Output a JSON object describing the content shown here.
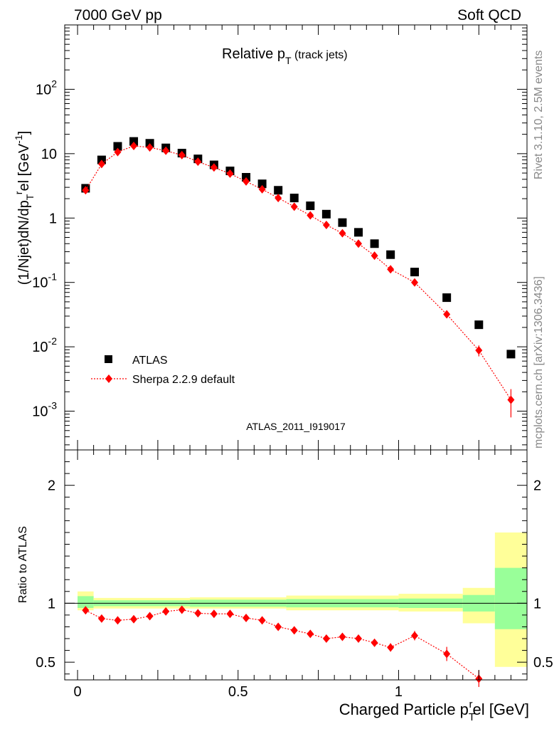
{
  "header": {
    "left": "7000 GeV pp",
    "right": "Soft QCD"
  },
  "side_labels": {
    "rivet": "Rivet 3.1.10,  2.5M events",
    "mcplots": "mcplots.cern.ch [arXiv:1306.3436]"
  },
  "colors": {
    "data": "#000000",
    "mc": "#ff0000",
    "band_inner": "#99ff99",
    "band_outer": "#ffff99"
  },
  "chart_data": [
    {
      "type": "scatter",
      "title": "Relative p",
      "title_sub": "T",
      "title_suffix": " (track jets)",
      "ylabel": "(1/Njet)dN/dp",
      "ylabel_sub": "T",
      "ylabel_sup": "r",
      "ylabel_suffix": "el [GeV",
      "ylabel_unit_sup": "-1",
      "ylabel_close": "]",
      "yscale": "log",
      "ylim": [
        0.00025,
        1000
      ],
      "xlim": [
        -0.04,
        1.4
      ],
      "grid": false,
      "legend_position": "lower-left",
      "watermark": "ATLAS_2011_I919017",
      "y_tick_labels": [
        {
          "v": 0.001,
          "base": "10",
          "exp": "-3"
        },
        {
          "v": 0.01,
          "base": "10",
          "exp": "-2"
        },
        {
          "v": 0.1,
          "base": "10",
          "exp": "-1"
        },
        {
          "v": 1,
          "base": "1",
          "exp": ""
        },
        {
          "v": 10,
          "base": "10",
          "exp": ""
        },
        {
          "v": 100,
          "base": "10",
          "exp": "2"
        }
      ],
      "series": [
        {
          "name": "ATLAS",
          "marker": "square",
          "x": [
            0.025,
            0.075,
            0.125,
            0.175,
            0.225,
            0.275,
            0.325,
            0.375,
            0.425,
            0.475,
            0.525,
            0.575,
            0.625,
            0.675,
            0.725,
            0.775,
            0.825,
            0.875,
            0.925,
            0.975,
            1.05,
            1.15,
            1.25,
            1.35
          ],
          "y": [
            2.9,
            8.0,
            13.0,
            15.5,
            14.5,
            12.3,
            10.2,
            8.3,
            6.7,
            5.4,
            4.3,
            3.4,
            2.7,
            2.05,
            1.55,
            1.15,
            0.85,
            0.6,
            0.4,
            0.27,
            0.145,
            0.058,
            0.022,
            0.0077
          ]
        },
        {
          "name": "Sherpa 2.2.9 default",
          "marker": "diamond",
          "x": [
            0.025,
            0.075,
            0.125,
            0.175,
            0.225,
            0.275,
            0.325,
            0.375,
            0.425,
            0.475,
            0.525,
            0.575,
            0.625,
            0.675,
            0.725,
            0.775,
            0.825,
            0.875,
            0.925,
            0.975,
            1.05,
            1.15,
            1.25,
            1.35
          ],
          "y": [
            2.7,
            6.9,
            10.6,
            13.2,
            12.5,
            11.1,
            9.5,
            7.5,
            6.1,
            4.9,
            3.7,
            2.8,
            2.05,
            1.5,
            1.1,
            0.78,
            0.58,
            0.4,
            0.26,
            0.16,
            0.1,
            0.032,
            0.0088,
            0.0015
          ],
          "yerr_low": [
            0,
            0,
            0,
            0,
            0,
            0,
            0,
            0,
            0,
            0,
            0,
            0,
            0,
            0,
            0,
            0,
            0,
            0,
            0,
            0,
            0,
            0.003,
            0.0017,
            0.0007
          ],
          "yerr_high": [
            0,
            0,
            0,
            0,
            0,
            0,
            0,
            0,
            0,
            0,
            0,
            0,
            0,
            0,
            0,
            0,
            0,
            0,
            0,
            0,
            0,
            0.003,
            0.0017,
            0.0007
          ]
        }
      ]
    },
    {
      "type": "scatter",
      "ylabel": "Ratio to ATLAS",
      "xlabel": "Charged Particle p",
      "xlabel_sub": "T",
      "xlabel_sup": "r",
      "xlabel_suffix": "el [GeV]",
      "xlim": [
        -0.04,
        1.4
      ],
      "ylim": [
        0.35,
        2.3
      ],
      "x_ticks": [
        0,
        0.5,
        1
      ],
      "x_tick_labels": [
        "0",
        "0.5",
        "1"
      ],
      "y_ticks": [
        0.5,
        1,
        2
      ],
      "y_tick_labels": [
        "0.5",
        "1",
        "2"
      ],
      "reference_line": 1,
      "bands": [
        {
          "x0": 0.0,
          "x1": 0.05,
          "inner": [
            0.96,
            1.06
          ],
          "outer": [
            0.94,
            1.1
          ]
        },
        {
          "x0": 0.05,
          "x1": 0.35,
          "inner": [
            0.975,
            1.025
          ],
          "outer": [
            0.955,
            1.045
          ]
        },
        {
          "x0": 0.35,
          "x1": 0.65,
          "inner": [
            0.97,
            1.03
          ],
          "outer": [
            0.955,
            1.05
          ]
        },
        {
          "x0": 0.65,
          "x1": 1.0,
          "inner": [
            0.965,
            1.035
          ],
          "outer": [
            0.94,
            1.065
          ]
        },
        {
          "x0": 1.0,
          "x1": 1.2,
          "inner": [
            0.96,
            1.04
          ],
          "outer": [
            0.93,
            1.08
          ]
        },
        {
          "x0": 1.2,
          "x1": 1.3,
          "inner": [
            0.93,
            1.07
          ],
          "outer": [
            0.83,
            1.13
          ]
        },
        {
          "x0": 1.3,
          "x1": 1.4,
          "inner": [
            0.78,
            1.3
          ],
          "outer": [
            0.46,
            1.6
          ]
        }
      ],
      "series": [
        {
          "name": "Sherpa 2.2.9 default",
          "marker": "diamond",
          "x": [
            0.025,
            0.075,
            0.125,
            0.175,
            0.225,
            0.275,
            0.325,
            0.375,
            0.425,
            0.475,
            0.525,
            0.575,
            0.625,
            0.675,
            0.725,
            0.775,
            0.825,
            0.875,
            0.925,
            0.975,
            1.05,
            1.15,
            1.25
          ],
          "y": [
            0.94,
            0.87,
            0.855,
            0.865,
            0.89,
            0.93,
            0.945,
            0.915,
            0.91,
            0.91,
            0.875,
            0.855,
            0.8,
            0.77,
            0.74,
            0.7,
            0.715,
            0.7,
            0.665,
            0.625,
            0.725,
            0.57,
            0.36
          ],
          "yerr": [
            0.01,
            0.01,
            0.01,
            0.01,
            0.01,
            0.01,
            0.01,
            0.01,
            0.01,
            0.01,
            0.01,
            0.01,
            0.01,
            0.012,
            0.012,
            0.015,
            0.02,
            0.025,
            0.03,
            0.035,
            0.04,
            0.06,
            0.07
          ]
        }
      ]
    }
  ]
}
